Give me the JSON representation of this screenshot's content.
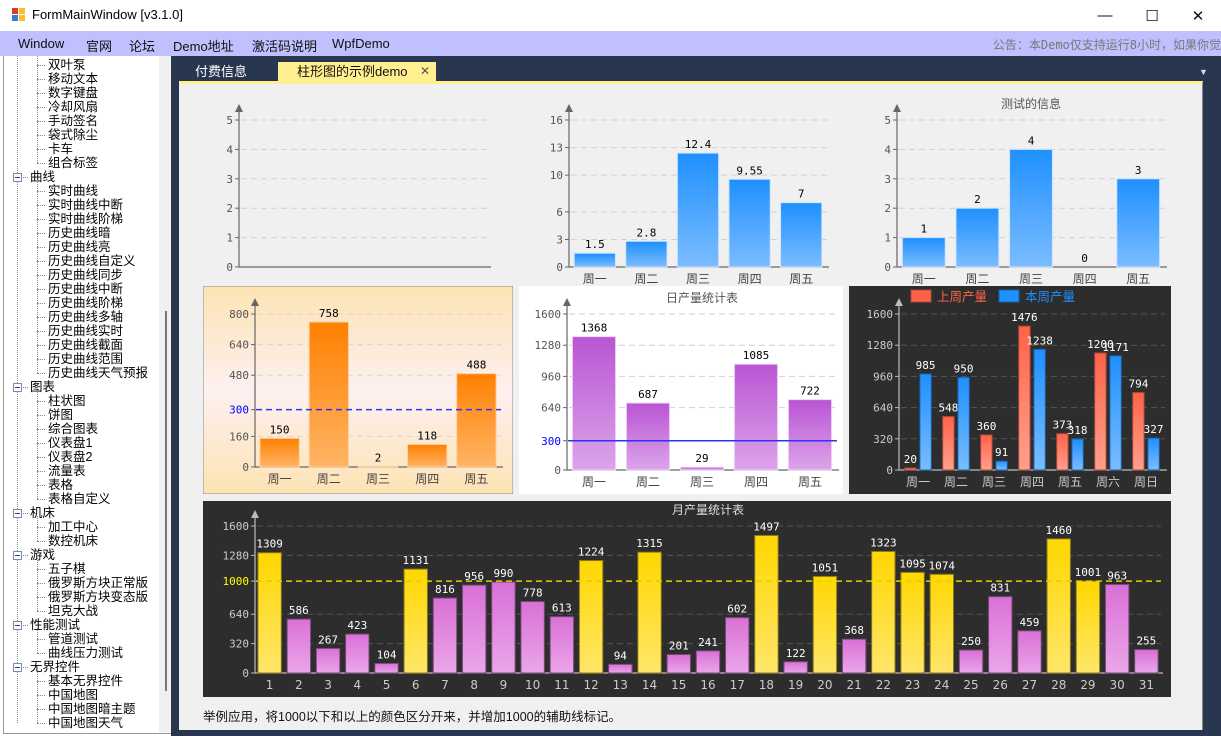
{
  "window": {
    "title": "FormMainWindow [v3.1.0]",
    "controls": {
      "minimize": "—",
      "maximize": "☐",
      "close": "✕"
    }
  },
  "menu": {
    "items": [
      "Window",
      "官网",
      "论坛",
      "Demo地址",
      "激活码说明",
      "WpfDemo"
    ],
    "notice": "公告：本Demo仅支持运行8小时，如果你觉"
  },
  "sidebar": {
    "groups": [
      {
        "label": null,
        "children": [
          "双叶泵",
          "移动文本",
          "数字键盘",
          "冷却风扇",
          "手动签名",
          "袋式除尘",
          "卡车",
          "组合标签"
        ]
      },
      {
        "label": "曲线",
        "children": [
          "实时曲线",
          "实时曲线中断",
          "实时曲线阶梯",
          "历史曲线暗",
          "历史曲线亮",
          "历史曲线自定义",
          "历史曲线同步",
          "历史曲线中断",
          "历史曲线阶梯",
          "历史曲线多轴",
          "历史曲线实时",
          "历史曲线截面",
          "历史曲线范围",
          "历史曲线天气预报"
        ]
      },
      {
        "label": "图表",
        "children": [
          "柱状图",
          "饼图",
          "综合图表",
          "仪表盘1",
          "仪表盘2",
          "流量表",
          "表格",
          "表格自定义"
        ]
      },
      {
        "label": "机床",
        "children": [
          "加工中心",
          "数控机床"
        ]
      },
      {
        "label": "游戏",
        "children": [
          "五子棋",
          "俄罗斯方块正常版",
          "俄罗斯方块变态版",
          "坦克大战"
        ]
      },
      {
        "label": "性能测试",
        "children": [
          "管道测试",
          "曲线压力测试"
        ]
      },
      {
        "label": "无界控件",
        "children": [
          "基本无界控件",
          "中国地图",
          "中国地图暗主题",
          "中国地图天气"
        ]
      }
    ]
  },
  "tabs": [
    {
      "label": "付费信息",
      "active": false
    },
    {
      "label": "柱形图的示例demo",
      "active": true,
      "close": "✕"
    }
  ],
  "tab_overflow_icon": "▼",
  "footnote": "举例应用，将1000以下和以上的颜色区分开来，并增加1000的辅助线标记。",
  "colors": {
    "blue": "#1e90ff",
    "orange": "#ff8000",
    "purple": "#ba55d3",
    "red": "#ff6347",
    "gold": "#ffd700",
    "violet": "#da70d6",
    "aux_blue": "#0000ff",
    "aux_gold": "#ffd700"
  },
  "chart_data": [
    {
      "id": "chart1",
      "type": "bar",
      "title": "",
      "categories": [],
      "values": [],
      "yticks": [
        0,
        1,
        2,
        3,
        4,
        5
      ],
      "ylim": [
        0,
        5
      ],
      "grid": true,
      "theme": "light"
    },
    {
      "id": "chart2",
      "type": "bar",
      "title": "",
      "categories": [
        "周一",
        "周二",
        "周三",
        "周四",
        "周五"
      ],
      "values": [
        1.5,
        2.8,
        12.4,
        9.55,
        7
      ],
      "labels": [
        "1.5",
        "2.8",
        "12.4",
        "9.55",
        "7"
      ],
      "yticks": [
        0,
        3,
        6,
        10,
        13,
        16
      ],
      "ylim": [
        0,
        16
      ],
      "grid": true,
      "theme": "light"
    },
    {
      "id": "chart3",
      "type": "bar",
      "title": "测试的信息",
      "categories": [
        "周一",
        "周二",
        "周三",
        "周四",
        "周五"
      ],
      "values": [
        1,
        2,
        4,
        0,
        3
      ],
      "yticks": [
        0,
        1,
        2,
        3,
        4,
        5
      ],
      "ylim": [
        0,
        5
      ],
      "grid": true,
      "theme": "light"
    },
    {
      "id": "chart4",
      "type": "bar",
      "title": "",
      "categories": [
        "周一",
        "周二",
        "周三",
        "周四",
        "周五"
      ],
      "values": [
        150,
        758,
        2,
        118,
        488
      ],
      "yticks": [
        0,
        160,
        300,
        480,
        640,
        800
      ],
      "ylim": [
        0,
        800
      ],
      "auxline": {
        "value": 300,
        "label": "300",
        "style": "dashed"
      },
      "grid": true,
      "theme": "warm"
    },
    {
      "id": "chart5",
      "type": "bar",
      "title": "日产量统计表",
      "categories": [
        "周一",
        "周二",
        "周三",
        "周四",
        "周五"
      ],
      "values": [
        1368,
        687,
        29,
        1085,
        722
      ],
      "yticks": [
        0,
        300,
        640,
        960,
        1280,
        1600
      ],
      "ylim": [
        0,
        1600
      ],
      "auxline": {
        "value": 300,
        "label": "300",
        "style": "solid"
      },
      "grid": true,
      "theme": "white"
    },
    {
      "id": "chart6",
      "type": "bar",
      "title": "",
      "categories": [
        "周一",
        "周二",
        "周三",
        "周四",
        "周五",
        "周六",
        "周日"
      ],
      "series": [
        {
          "name": "上周产量",
          "values": [
            20,
            548,
            360,
            1476,
            373,
            1200,
            794
          ]
        },
        {
          "name": "本周产量",
          "values": [
            985,
            950,
            91,
            1238,
            318,
            1171,
            327
          ]
        }
      ],
      "yticks": [
        0,
        320,
        640,
        960,
        1280,
        1600
      ],
      "ylim": [
        0,
        1600
      ],
      "legend": "top-left",
      "grid": true,
      "theme": "dark"
    },
    {
      "id": "chart7",
      "type": "bar",
      "title": "月产量统计表",
      "categories": [
        "1",
        "2",
        "3",
        "4",
        "5",
        "6",
        "7",
        "8",
        "9",
        "10",
        "11",
        "12",
        "13",
        "14",
        "15",
        "16",
        "17",
        "18",
        "19",
        "20",
        "21",
        "22",
        "23",
        "24",
        "25",
        "26",
        "27",
        "28",
        "29",
        "30",
        "31"
      ],
      "values": [
        1309,
        586,
        267,
        423,
        104,
        1131,
        816,
        956,
        990,
        778,
        613,
        1224,
        94,
        1315,
        201,
        241,
        602,
        1497,
        122,
        1051,
        368,
        1323,
        1095,
        1074,
        250,
        831,
        459,
        1460,
        1001,
        963,
        255
      ],
      "yticks": [
        0,
        320,
        640,
        1000,
        1280,
        1600
      ],
      "ylim": [
        0,
        1600
      ],
      "auxline": {
        "value": 1000,
        "label": "1000",
        "style": "dashed"
      },
      "threshold": 1000,
      "grid": true,
      "theme": "dark"
    }
  ]
}
